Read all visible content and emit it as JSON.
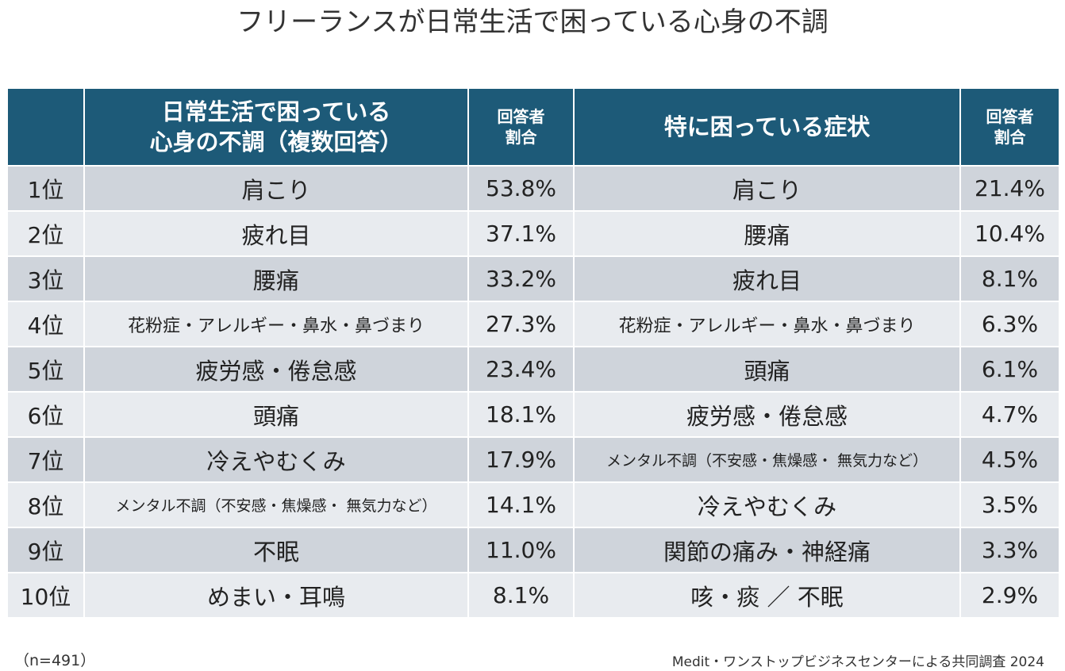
{
  "title": "フリーランスが日常生活で困っている心身の不調",
  "chart_data": {
    "type": "table",
    "columns": [
      {
        "key": "rank",
        "label": ""
      },
      {
        "key": "multi",
        "label_lines": [
          "日常生活で困っている",
          "心身の不調（複数回答）"
        ]
      },
      {
        "key": "multi_ratio",
        "label_lines": [
          "回答者",
          "割合"
        ]
      },
      {
        "key": "top",
        "label_lines": [
          "特に困っている症状"
        ]
      },
      {
        "key": "top_ratio",
        "label_lines": [
          "回答者",
          "割合"
        ]
      }
    ],
    "rows": [
      {
        "rank": "1位",
        "multi": "肩こり",
        "multi_ratio": "53.8%",
        "top": "肩こり",
        "top_ratio": "21.4%"
      },
      {
        "rank": "2位",
        "multi": "疲れ目",
        "multi_ratio": "37.1%",
        "top": "腰痛",
        "top_ratio": "10.4%"
      },
      {
        "rank": "3位",
        "multi": "腰痛",
        "multi_ratio": "33.2%",
        "top": "疲れ目",
        "top_ratio": "8.1%"
      },
      {
        "rank": "4位",
        "multi": "花粉症・アレルギー・鼻水・鼻づまり",
        "multi_ratio": "27.3%",
        "top": "花粉症・アレルギー・鼻水・鼻づまり",
        "top_ratio": "6.3%"
      },
      {
        "rank": "5位",
        "multi": "疲労感・倦怠感",
        "multi_ratio": "23.4%",
        "top": "頭痛",
        "top_ratio": "6.1%"
      },
      {
        "rank": "6位",
        "multi": "頭痛",
        "multi_ratio": "18.1%",
        "top": "疲労感・倦怠感",
        "top_ratio": "4.7%"
      },
      {
        "rank": "7位",
        "multi": "冷えやむくみ",
        "multi_ratio": "17.9%",
        "top": "メンタル不調（不安感・焦燥感・ 無気力など）",
        "top_ratio": "4.5%"
      },
      {
        "rank": "8位",
        "multi": "メンタル不調（不安感・焦燥感・ 無気力など）",
        "multi_ratio": "14.1%",
        "top": "冷えやむくみ",
        "top_ratio": "3.5%"
      },
      {
        "rank": "9位",
        "multi": "不眠",
        "multi_ratio": "11.0%",
        "top": "関節の痛み・神経痛",
        "top_ratio": "3.3%"
      },
      {
        "rank": "10位",
        "multi": "めまい・耳鳴",
        "multi_ratio": "8.1%",
        "top": "咳・痰 ／ 不眠",
        "top_ratio": "2.9%"
      }
    ]
  },
  "colors": {
    "header_bg": "#1d5a78",
    "row_dark": "#cfd4db",
    "row_light": "#e8ebef"
  },
  "footer": {
    "sample": "（n=491）",
    "source": "Medit・ワンストップビジネスセンターによる共同調査 2024"
  }
}
